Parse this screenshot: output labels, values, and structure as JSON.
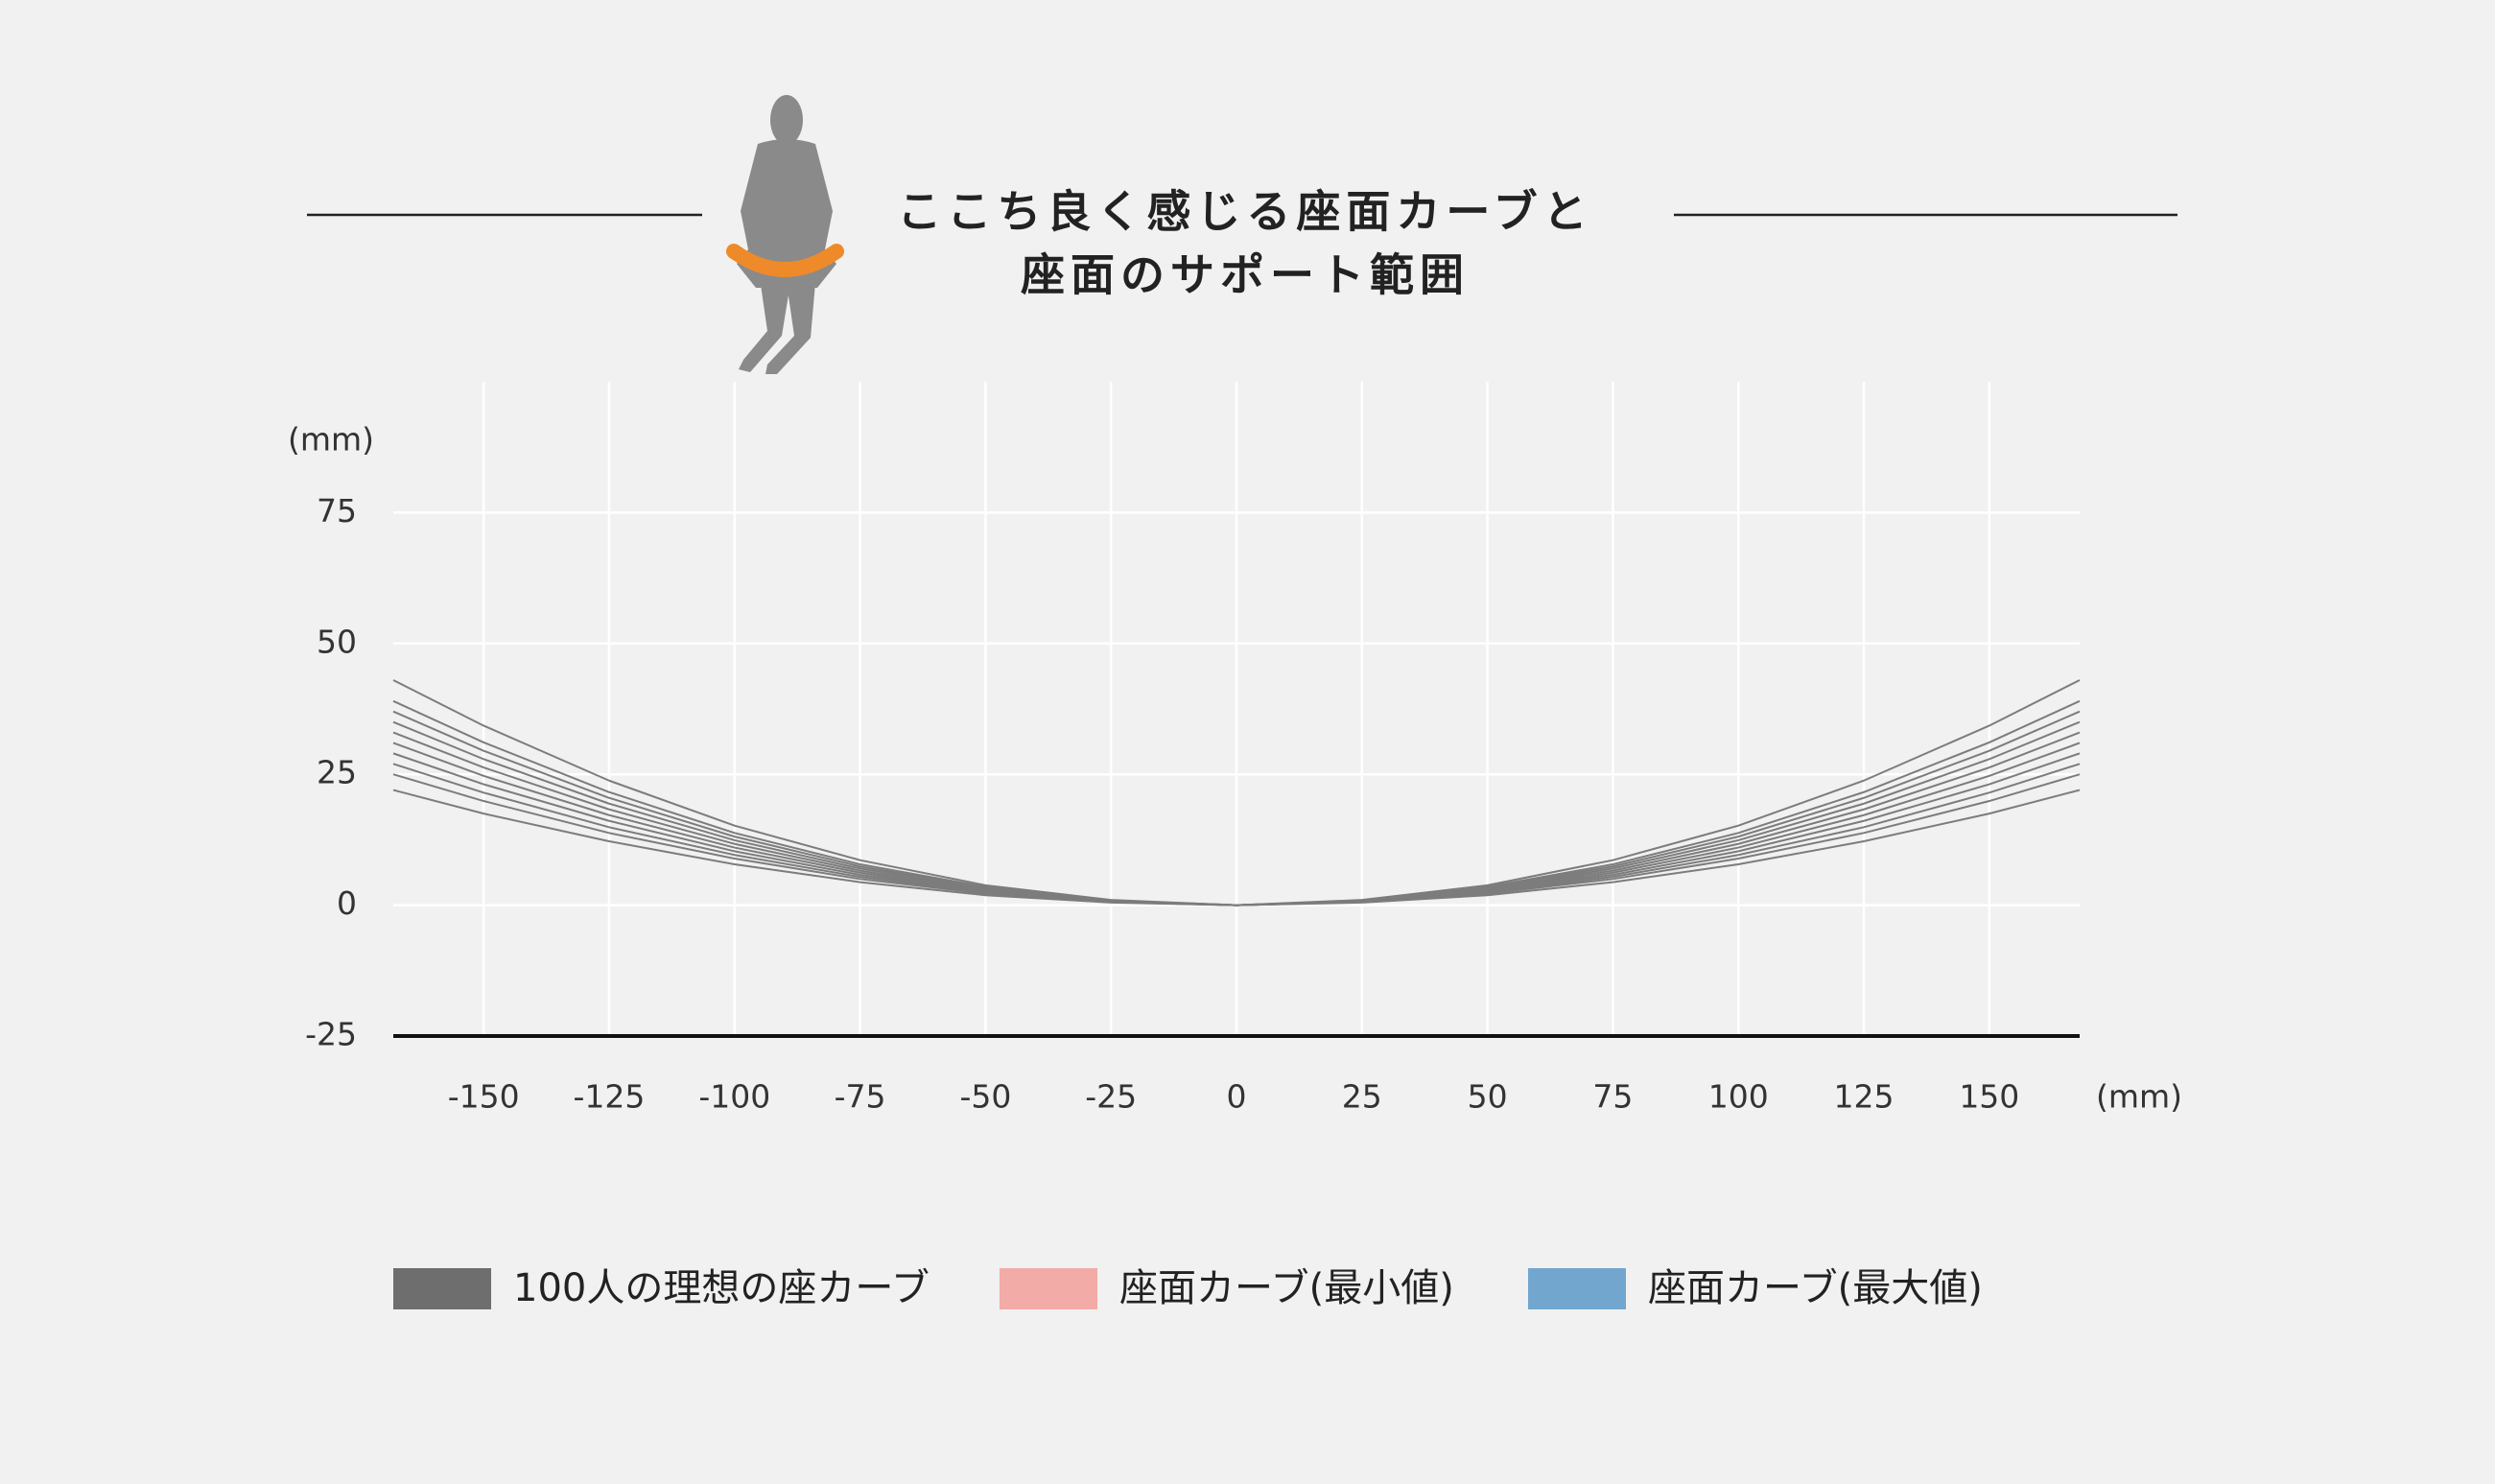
{
  "chart_data": {
    "type": "line",
    "title": [
      "ここち良く感じる座面カーブと",
      "座面のサポート範囲"
    ],
    "y_unit": "(mm)",
    "x_unit": "(mm)",
    "x": [
      -168,
      -150,
      -125,
      -100,
      -75,
      -50,
      -25,
      0,
      25,
      50,
      75,
      100,
      125,
      150,
      168
    ],
    "xlim": [
      -168,
      168
    ],
    "xticks": [
      -150,
      -125,
      -100,
      -75,
      -50,
      -25,
      0,
      25,
      50,
      75,
      100,
      125,
      150
    ],
    "ylim": [
      -25,
      100
    ],
    "yticks": [
      -25,
      0,
      25,
      50,
      75
    ],
    "grid": true,
    "line_color": "#7c7c7c",
    "series": [
      {
        "values": [
          43,
          34.3,
          23.8,
          15.2,
          8.6,
          3.8,
          1.0,
          0,
          1.0,
          3.8,
          8.6,
          15.2,
          23.8,
          34.3,
          43
        ]
      },
      {
        "values": [
          39,
          31.1,
          21.6,
          13.8,
          7.8,
          3.5,
          0.9,
          0,
          0.9,
          3.5,
          7.8,
          13.8,
          21.6,
          31.1,
          39
        ]
      },
      {
        "values": [
          37,
          29.5,
          20.5,
          13.1,
          7.4,
          3.3,
          0.8,
          0,
          0.8,
          3.3,
          7.4,
          13.1,
          20.5,
          29.5,
          37
        ]
      },
      {
        "values": [
          35,
          27.9,
          19.4,
          12.4,
          7.0,
          3.1,
          0.8,
          0,
          0.8,
          3.1,
          7.0,
          12.4,
          19.4,
          27.9,
          35
        ]
      },
      {
        "values": [
          33,
          26.3,
          18.3,
          11.7,
          6.6,
          2.9,
          0.7,
          0,
          0.7,
          2.9,
          6.6,
          11.7,
          18.3,
          26.3,
          33
        ]
      },
      {
        "values": [
          31,
          24.7,
          17.2,
          11.0,
          6.2,
          2.7,
          0.7,
          0,
          0.7,
          2.7,
          6.2,
          11.0,
          17.2,
          24.7,
          31
        ]
      },
      {
        "values": [
          29,
          23.1,
          16.1,
          10.3,
          5.8,
          2.6,
          0.6,
          0,
          0.6,
          2.6,
          5.8,
          10.3,
          16.1,
          23.1,
          29
        ]
      },
      {
        "values": [
          27,
          21.5,
          14.9,
          9.6,
          5.4,
          2.4,
          0.6,
          0,
          0.6,
          2.4,
          5.4,
          9.6,
          14.9,
          21.5,
          27
        ]
      },
      {
        "values": [
          25,
          19.9,
          13.8,
          8.9,
          5.0,
          2.2,
          0.6,
          0,
          0.6,
          2.2,
          5.0,
          8.9,
          13.8,
          19.9,
          25
        ]
      },
      {
        "values": [
          22,
          17.5,
          12.2,
          7.8,
          4.4,
          1.9,
          0.5,
          0,
          0.5,
          1.9,
          4.4,
          7.8,
          12.2,
          17.5,
          22
        ]
      }
    ],
    "legend": [
      {
        "label": "100人の理想の座カーブ",
        "color": "#6e6e6e"
      },
      {
        "label": "座面カーブ(最小値)",
        "color": "#f2aba7"
      },
      {
        "label": "座面カーブ(最大値)",
        "color": "#72a6cf"
      }
    ]
  }
}
